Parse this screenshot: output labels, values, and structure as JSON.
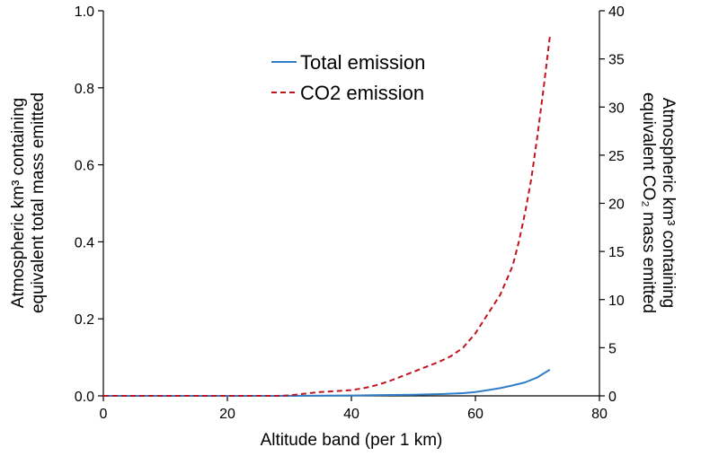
{
  "chart_data": {
    "type": "line",
    "xlabel": "Altitude band (per 1 km)",
    "xlim": [
      0,
      80
    ],
    "xticks": [
      0,
      20,
      40,
      60,
      80
    ],
    "left_axis": {
      "label_lines": [
        "Atmospheric km³ containing",
        "equivalent total mass emitted"
      ],
      "ylim": [
        0,
        1.0
      ],
      "ticks": [
        0.0,
        0.2,
        0.4,
        0.6,
        0.8,
        1.0
      ],
      "tick_labels": [
        "0.0",
        "0.2",
        "0.4",
        "0.6",
        "0.8",
        "1.0"
      ]
    },
    "right_axis": {
      "label_lines": [
        "Atmospheric km³ containing",
        "equivalent CO₂ mass emitted"
      ],
      "ylim": [
        0,
        40
      ],
      "ticks": [
        0,
        5,
        10,
        15,
        20,
        25,
        30,
        35,
        40
      ],
      "tick_labels": [
        "0",
        "5",
        "10",
        "15",
        "20",
        "25",
        "30",
        "35",
        "40"
      ]
    },
    "legend_position": "top-center",
    "series": [
      {
        "name": "Total emission",
        "axis": "left",
        "color": "#2F7EC7",
        "style": "solid",
        "x": [
          0,
          10,
          20,
          30,
          40,
          45,
          50,
          55,
          58,
          60,
          62,
          64,
          66,
          68,
          70,
          72
        ],
        "y": [
          0,
          0,
          0,
          0,
          0.001,
          0.002,
          0.003,
          0.005,
          0.007,
          0.01,
          0.015,
          0.02,
          0.027,
          0.035,
          0.048,
          0.068
        ]
      },
      {
        "name": "CO2 emission",
        "axis": "right",
        "color": "#C0141E",
        "style": "dashed",
        "x": [
          0,
          10,
          20,
          28,
          30,
          32,
          35,
          40,
          42,
          44,
          46,
          48,
          50,
          52,
          54,
          56,
          58,
          60,
          62,
          64,
          66,
          67,
          68,
          69,
          70,
          71,
          72
        ],
        "y": [
          0,
          0,
          0,
          0,
          0.05,
          0.2,
          0.4,
          0.6,
          0.8,
          1.1,
          1.5,
          2.0,
          2.5,
          3.0,
          3.5,
          4.1,
          5.0,
          6.5,
          8.5,
          10.5,
          13.5,
          16.0,
          19.0,
          22.5,
          27.0,
          32.0,
          37.3
        ]
      }
    ]
  }
}
